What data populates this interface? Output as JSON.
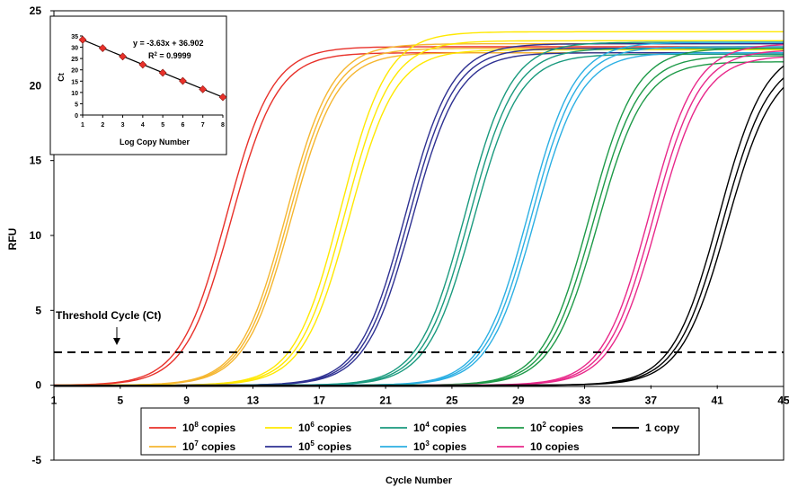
{
  "chart_data": [
    {
      "type": "line",
      "title": "",
      "xlabel": "Cycle Number",
      "ylabel": "RFU",
      "xlim": [
        1,
        45
      ],
      "ylim": [
        -5,
        25
      ],
      "xticks": [
        "1",
        "5",
        "9",
        "13",
        "17",
        "21",
        "25",
        "29",
        "33",
        "37",
        "41",
        "45"
      ],
      "yticks": [
        "-5",
        "0",
        "5",
        "10",
        "15",
        "20",
        "25"
      ],
      "grid": false,
      "legend_position": "bottom",
      "threshold": {
        "label": "Threshold Cycle (Ct)",
        "value": 2.2
      },
      "series": [
        {
          "name": "10<sup>8</sup> copies",
          "base": "10",
          "exp": "8",
          "suffix": " copies",
          "color": "#e8312a",
          "midpoints": [
            11.4,
            11.7
          ],
          "plateaus": [
            22.6,
            22.2
          ]
        },
        {
          "name": "10<sup>7</sup> copies",
          "base": "10",
          "exp": "7",
          "suffix": " copies",
          "color": "#f5b630",
          "midpoints": [
            15.0,
            15.15,
            15.3
          ],
          "plateaus": [
            22.8,
            22.5,
            22.2
          ]
        },
        {
          "name": "10<sup>6</sup> copies",
          "base": "10",
          "exp": "6",
          "suffix": " copies",
          "color": "#ffe800",
          "midpoints": [
            18.3,
            18.55,
            18.8
          ],
          "plateaus": [
            23.6,
            23.0,
            22.4
          ]
        },
        {
          "name": "10<sup>5</sup> copies",
          "base": "10",
          "exp": "5",
          "suffix": " copies",
          "color": "#2e3192",
          "midpoints": [
            22.2,
            22.4,
            22.6
          ],
          "plateaus": [
            22.8,
            22.5,
            22.2
          ]
        },
        {
          "name": "10<sup>4</sup> copies",
          "base": "10",
          "exp": "4",
          "suffix": " copies",
          "color": "#1a9a7e",
          "midpoints": [
            25.8,
            26.05,
            26.3
          ],
          "plateaus": [
            22.9,
            22.5,
            22.1
          ]
        },
        {
          "name": "10<sup>3</sup> copies",
          "base": "10",
          "exp": "3",
          "suffix": " copies",
          "color": "#2bafe3",
          "midpoints": [
            29.6,
            29.8,
            30.0
          ],
          "plateaus": [
            22.9,
            22.6,
            22.2
          ]
        },
        {
          "name": "10<sup>2</sup> copies",
          "base": "10",
          "exp": "2",
          "suffix": " copies",
          "color": "#1e9a48",
          "midpoints": [
            33.3,
            33.55,
            33.8
          ],
          "plateaus": [
            22.5,
            22.0,
            21.6
          ]
        },
        {
          "name": "10 copies",
          "base": "10",
          "exp": "",
          "suffix": " copies",
          "color": "#e8288a",
          "midpoints": [
            36.9,
            37.15,
            37.4
          ],
          "plateaus": [
            22.8,
            22.4,
            22.0
          ]
        },
        {
          "name": "1 copy",
          "base": "1 copy",
          "exp": "",
          "suffix": "",
          "color": "#000000",
          "midpoints": [
            41.1,
            41.35,
            41.6
          ],
          "plateaus": [
            22.6,
            22.0,
            21.6
          ]
        }
      ]
    },
    {
      "type": "scatter",
      "xlabel": "Log Copy Number",
      "ylabel": "Ct",
      "xlim": [
        1,
        8
      ],
      "ylim": [
        0,
        35
      ],
      "xticks": [
        "1",
        "2",
        "3",
        "4",
        "5",
        "6",
        "7",
        "8"
      ],
      "yticks": [
        "0",
        "5",
        "10",
        "15",
        "20",
        "25",
        "30",
        "35"
      ],
      "x": [
        1,
        2,
        3,
        4,
        5,
        6,
        7,
        8
      ],
      "y": [
        33.3,
        29.6,
        25.9,
        22.3,
        18.7,
        15.1,
        11.4,
        7.9
      ],
      "marker_color": "#e8312a",
      "equation": "y = -3.63x + 36.902",
      "r2": "R",
      "r2_exp": "2",
      "r2_value": " = 0.9999",
      "fit": {
        "slope": -3.63,
        "intercept": 36.902
      }
    }
  ]
}
